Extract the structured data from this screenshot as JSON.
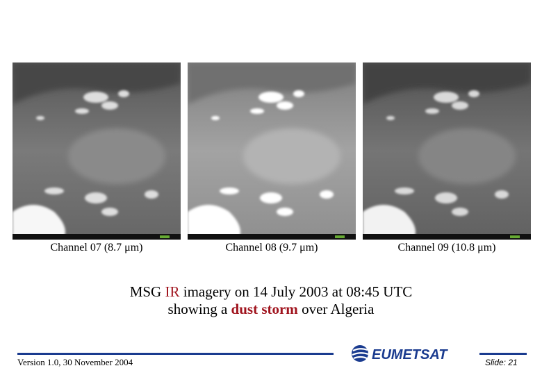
{
  "panels": [
    {
      "caption": "Channel 07 (8.7 μm)"
    },
    {
      "caption": "Channel 08 (9.7 μm)"
    },
    {
      "caption": "Channel 09 (10.8 μm)"
    }
  ],
  "caption": {
    "line1": [
      "MSG ",
      "IR",
      " imagery on 14 July 2003 at 08:45 UTC"
    ],
    "line2": [
      "showing a ",
      "dust storm",
      " over Algeria"
    ]
  },
  "footer": {
    "version": "Version 1.0, 30 November 2004",
    "logo": "EUMETSAT",
    "slide": "Slide: 21"
  }
}
